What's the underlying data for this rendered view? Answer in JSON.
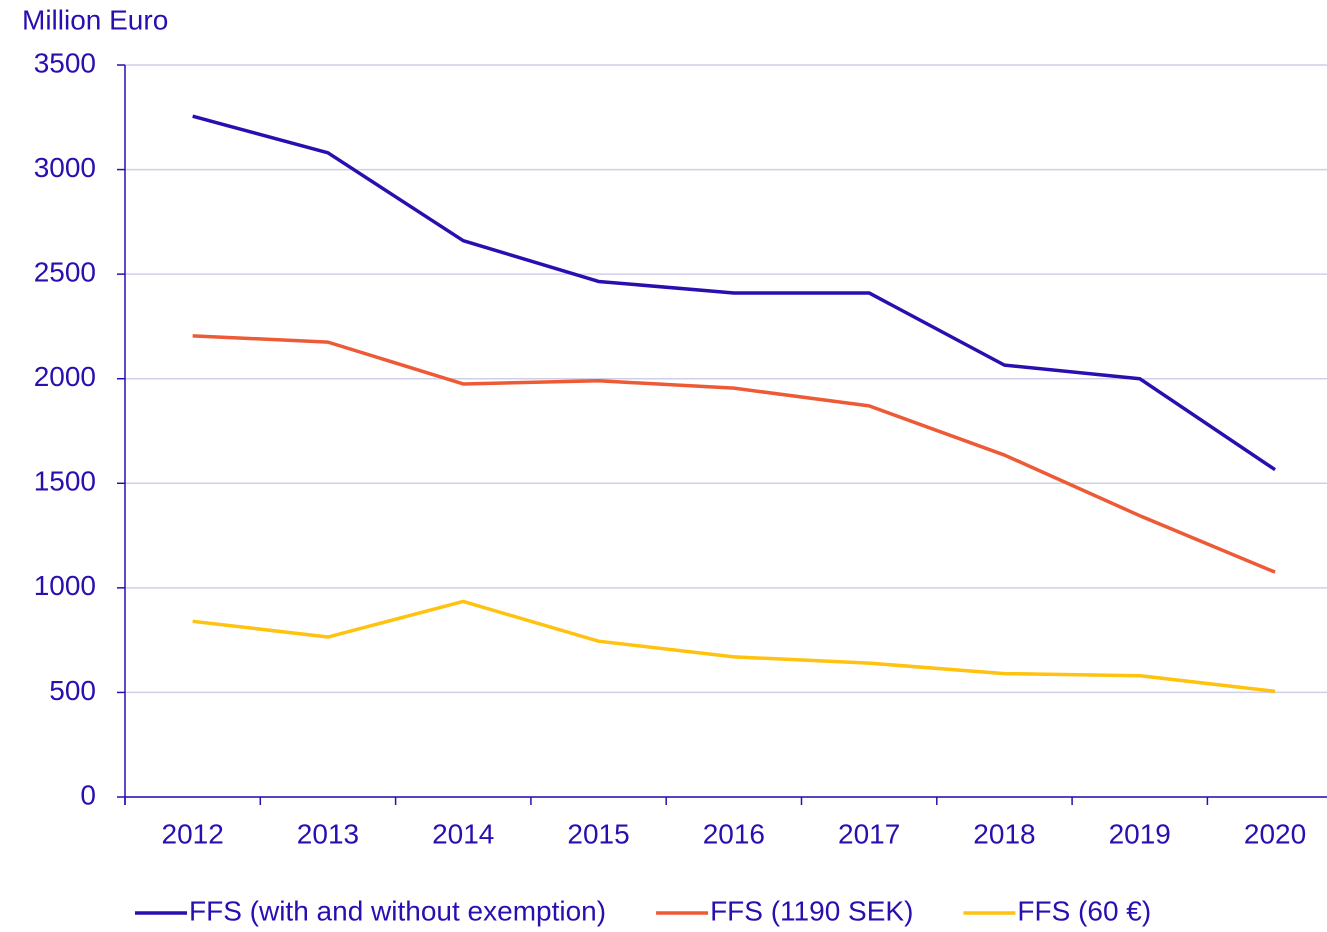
{
  "chart_data": {
    "type": "line",
    "y_axis_label": "Million Euro",
    "categories": [
      "2012",
      "2013",
      "2014",
      "2015",
      "2016",
      "2017",
      "2018",
      "2019",
      "2020"
    ],
    "series": [
      {
        "name": "FFS (with and without exemption)",
        "color": "#2a0fb0",
        "values": [
          3255,
          3080,
          2660,
          2465,
          2410,
          2410,
          2065,
          2000,
          1565
        ]
      },
      {
        "name": "FFS (1190 SEK)",
        "color": "#ee5a35",
        "values": [
          2205,
          2175,
          1975,
          1990,
          1955,
          1870,
          1635,
          1345,
          1075
        ]
      },
      {
        "name": "FFS (60 €)",
        "color": "#ffc20e",
        "values": [
          840,
          765,
          935,
          745,
          670,
          640,
          590,
          580,
          505
        ]
      }
    ],
    "ylim": [
      0,
      3500
    ],
    "yticks": [
      0,
      500,
      1000,
      1500,
      2000,
      2500,
      3000,
      3500
    ],
    "grid": true,
    "legend": "bottom"
  }
}
